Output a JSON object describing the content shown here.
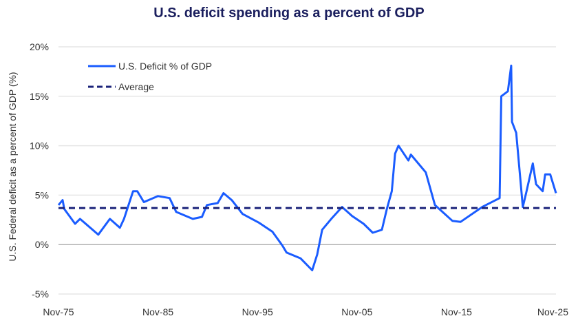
{
  "chart_data": {
    "type": "line",
    "title": "U.S. deficit spending as a percent of GDP",
    "xlabel": "",
    "ylabel": "U.S. Federal deficit as a percent of GDP (%)",
    "x_tick_labels": [
      "Nov-75",
      "Nov-85",
      "Nov-95",
      "Nov-05",
      "Nov-15",
      "Nov-25"
    ],
    "x_ticks": [
      "1975-11",
      "1985-11",
      "1995-11",
      "2005-11",
      "2015-11",
      "2025-11"
    ],
    "y_tick_labels": [
      "-5%",
      "0%",
      "5%",
      "10%",
      "15%",
      "20%"
    ],
    "y_ticks": [
      -5,
      0,
      5,
      10,
      15,
      20
    ],
    "ylim": [
      -5,
      20
    ],
    "xlim": [
      "1975-11",
      "2025-11"
    ],
    "grid": "horizontal",
    "legend_placement": "top-left",
    "colors": {
      "deficit": "#1a5cff",
      "average": "#1b237a",
      "title": "#1b1f5e",
      "zero_line": "#999999",
      "grid": "#e6e6e6"
    },
    "series": [
      {
        "name": "U.S. Deficit % of GDP",
        "style": "solid",
        "x": [
          "1975-11",
          "1976-04",
          "1976-06",
          "1977-07",
          "1978-01",
          "1979-11",
          "1981-01",
          "1982-01",
          "1982-06",
          "1983-05",
          "1983-10",
          "1984-06",
          "1985-11",
          "1987-01",
          "1987-09",
          "1989-05",
          "1990-04",
          "1990-10",
          "1991-11",
          "1992-06",
          "1993-04",
          "1994-05",
          "1996-01",
          "1997-05",
          "1998-05",
          "1998-10",
          "2000-03",
          "2001-05",
          "2001-11",
          "2002-05",
          "2003-04",
          "2004-05",
          "2005-05",
          "2006-07",
          "2007-06",
          "2008-05",
          "2008-11",
          "2009-05",
          "2009-09",
          "2010-01",
          "2011-01",
          "2011-04",
          "2012-10",
          "2013-09",
          "2015-06",
          "2016-04",
          "2018-06",
          "2020-03",
          "2020-05",
          "2021-01",
          "2021-05",
          "2021-06",
          "2021-11",
          "2022-07",
          "2022-11",
          "2023-07",
          "2023-11",
          "2024-07",
          "2024-10",
          "2025-04",
          "2025-11"
        ],
        "values": [
          4.0,
          4.5,
          3.6,
          2.1,
          2.6,
          1.0,
          2.6,
          1.7,
          2.6,
          5.4,
          5.4,
          4.3,
          4.9,
          4.7,
          3.3,
          2.6,
          2.8,
          4.0,
          4.2,
          5.2,
          4.5,
          3.1,
          2.2,
          1.3,
          -0.1,
          -0.8,
          -1.4,
          -2.6,
          -1.0,
          1.5,
          2.6,
          3.8,
          2.9,
          2.1,
          1.2,
          1.5,
          3.6,
          5.4,
          9.2,
          10.0,
          8.5,
          9.1,
          7.3,
          4.0,
          2.4,
          2.3,
          3.8,
          4.7,
          15.0,
          15.5,
          18.1,
          12.4,
          11.3,
          3.8,
          5.2,
          8.2,
          6.1,
          5.4,
          7.1,
          7.1,
          5.2
        ]
      },
      {
        "name": "Average",
        "style": "dashed",
        "x": [
          "1975-11",
          "2025-11"
        ],
        "values": [
          3.7,
          3.7
        ]
      }
    ]
  }
}
